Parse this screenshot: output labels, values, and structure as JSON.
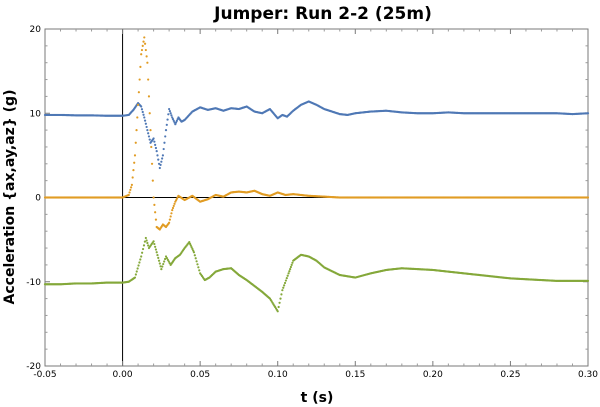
{
  "chart_data": {
    "type": "scatter",
    "title": "Jumper: Run 2-2 (25m)",
    "xlabel": "t (s)",
    "ylabel": "Acceleration {ax,ay,az} (g)",
    "xlim": [
      -0.05,
      0.3
    ],
    "ylim": [
      -20,
      20
    ],
    "x_ticks": [
      -0.05,
      0.0,
      0.05,
      0.1,
      0.15,
      0.2,
      0.25,
      0.3
    ],
    "x_tick_labels": [
      "-0.05",
      "0.00",
      "0.05",
      "0.10",
      "0.15",
      "0.20",
      "0.25",
      "0.30"
    ],
    "y_ticks": [
      -20,
      -10,
      0,
      10,
      20
    ],
    "y_tick_labels": [
      "-20",
      "-10",
      "0",
      "10",
      "20"
    ],
    "grid": false,
    "series": [
      {
        "color": "#4f78b5",
        "points": [
          [
            -0.05,
            9.8
          ],
          [
            -0.04,
            9.8
          ],
          [
            -0.03,
            9.75
          ],
          [
            -0.02,
            9.75
          ],
          [
            -0.01,
            9.7
          ],
          [
            0.0,
            9.7
          ],
          [
            0.004,
            9.8
          ],
          [
            0.007,
            10.4
          ],
          [
            0.01,
            11.2
          ],
          [
            0.012,
            10.8
          ],
          [
            0.014,
            9.5
          ],
          [
            0.016,
            8.0
          ],
          [
            0.018,
            6.5
          ],
          [
            0.02,
            7.0
          ],
          [
            0.022,
            5.5
          ],
          [
            0.024,
            3.5
          ],
          [
            0.026,
            5.0
          ],
          [
            0.028,
            8.0
          ],
          [
            0.03,
            10.5
          ],
          [
            0.032,
            9.5
          ],
          [
            0.034,
            8.7
          ],
          [
            0.036,
            9.5
          ],
          [
            0.038,
            9.0
          ],
          [
            0.04,
            9.2
          ],
          [
            0.045,
            10.2
          ],
          [
            0.05,
            10.7
          ],
          [
            0.055,
            10.4
          ],
          [
            0.06,
            10.6
          ],
          [
            0.065,
            10.3
          ],
          [
            0.07,
            10.6
          ],
          [
            0.075,
            10.5
          ],
          [
            0.08,
            10.8
          ],
          [
            0.085,
            10.2
          ],
          [
            0.09,
            10.0
          ],
          [
            0.095,
            10.5
          ],
          [
            0.1,
            9.4
          ],
          [
            0.103,
            9.8
          ],
          [
            0.106,
            9.6
          ],
          [
            0.11,
            10.3
          ],
          [
            0.115,
            11.0
          ],
          [
            0.12,
            11.4
          ],
          [
            0.125,
            11.0
          ],
          [
            0.13,
            10.5
          ],
          [
            0.135,
            10.2
          ],
          [
            0.14,
            9.9
          ],
          [
            0.145,
            9.8
          ],
          [
            0.15,
            10.0
          ],
          [
            0.16,
            10.2
          ],
          [
            0.17,
            10.3
          ],
          [
            0.18,
            10.1
          ],
          [
            0.19,
            10.0
          ],
          [
            0.2,
            10.0
          ],
          [
            0.21,
            10.1
          ],
          [
            0.22,
            10.0
          ],
          [
            0.23,
            10.0
          ],
          [
            0.24,
            10.0
          ],
          [
            0.25,
            10.0
          ],
          [
            0.26,
            10.0
          ],
          [
            0.27,
            10.0
          ],
          [
            0.28,
            10.0
          ],
          [
            0.29,
            9.9
          ],
          [
            0.3,
            10.0
          ]
        ]
      },
      {
        "color": "#e19c24",
        "points": [
          [
            -0.05,
            0.0
          ],
          [
            -0.01,
            0.0
          ],
          [
            0.0,
            0.0
          ],
          [
            0.004,
            0.3
          ],
          [
            0.006,
            1.5
          ],
          [
            0.008,
            5.0
          ],
          [
            0.01,
            11.0
          ],
          [
            0.012,
            17.0
          ],
          [
            0.014,
            19.0
          ],
          [
            0.016,
            16.0
          ],
          [
            0.018,
            8.0
          ],
          [
            0.02,
            0.0
          ],
          [
            0.022,
            -3.5
          ],
          [
            0.024,
            -3.8
          ],
          [
            0.026,
            -3.2
          ],
          [
            0.028,
            -3.5
          ],
          [
            0.03,
            -3.0
          ],
          [
            0.032,
            -1.5
          ],
          [
            0.034,
            -0.5
          ],
          [
            0.036,
            0.2
          ],
          [
            0.04,
            -0.3
          ],
          [
            0.045,
            0.2
          ],
          [
            0.05,
            -0.5
          ],
          [
            0.055,
            -0.2
          ],
          [
            0.06,
            0.3
          ],
          [
            0.065,
            0.1
          ],
          [
            0.07,
            0.6
          ],
          [
            0.075,
            0.7
          ],
          [
            0.08,
            0.6
          ],
          [
            0.085,
            0.8
          ],
          [
            0.09,
            0.4
          ],
          [
            0.095,
            0.2
          ],
          [
            0.1,
            0.6
          ],
          [
            0.105,
            0.3
          ],
          [
            0.11,
            0.4
          ],
          [
            0.12,
            0.2
          ],
          [
            0.13,
            0.1
          ],
          [
            0.14,
            0.0
          ],
          [
            0.15,
            0.0
          ],
          [
            0.2,
            0.0
          ],
          [
            0.25,
            0.0
          ],
          [
            0.3,
            0.0
          ]
        ]
      },
      {
        "color": "#84a83a",
        "points": [
          [
            -0.05,
            -10.3
          ],
          [
            -0.04,
            -10.3
          ],
          [
            -0.03,
            -10.2
          ],
          [
            -0.02,
            -10.2
          ],
          [
            -0.01,
            -10.1
          ],
          [
            0.0,
            -10.1
          ],
          [
            0.004,
            -10.0
          ],
          [
            0.008,
            -9.5
          ],
          [
            0.012,
            -7.0
          ],
          [
            0.015,
            -4.8
          ],
          [
            0.017,
            -6.0
          ],
          [
            0.02,
            -5.2
          ],
          [
            0.022,
            -6.5
          ],
          [
            0.025,
            -8.5
          ],
          [
            0.028,
            -7.0
          ],
          [
            0.031,
            -8.0
          ],
          [
            0.034,
            -7.2
          ],
          [
            0.037,
            -6.8
          ],
          [
            0.04,
            -6.0
          ],
          [
            0.043,
            -5.3
          ],
          [
            0.046,
            -6.5
          ],
          [
            0.05,
            -9.0
          ],
          [
            0.053,
            -9.8
          ],
          [
            0.056,
            -9.5
          ],
          [
            0.06,
            -8.8
          ],
          [
            0.065,
            -8.5
          ],
          [
            0.07,
            -8.4
          ],
          [
            0.075,
            -9.2
          ],
          [
            0.08,
            -9.8
          ],
          [
            0.085,
            -10.5
          ],
          [
            0.09,
            -11.2
          ],
          [
            0.095,
            -12.0
          ],
          [
            0.1,
            -13.5
          ],
          [
            0.103,
            -11.0
          ],
          [
            0.107,
            -9.0
          ],
          [
            0.11,
            -7.5
          ],
          [
            0.115,
            -6.8
          ],
          [
            0.12,
            -7.0
          ],
          [
            0.125,
            -7.5
          ],
          [
            0.13,
            -8.3
          ],
          [
            0.14,
            -9.2
          ],
          [
            0.15,
            -9.5
          ],
          [
            0.16,
            -9.0
          ],
          [
            0.17,
            -8.6
          ],
          [
            0.18,
            -8.4
          ],
          [
            0.19,
            -8.5
          ],
          [
            0.2,
            -8.6
          ],
          [
            0.21,
            -8.8
          ],
          [
            0.22,
            -9.0
          ],
          [
            0.23,
            -9.2
          ],
          [
            0.24,
            -9.4
          ],
          [
            0.25,
            -9.6
          ],
          [
            0.26,
            -9.7
          ],
          [
            0.27,
            -9.8
          ],
          [
            0.28,
            -9.9
          ],
          [
            0.29,
            -9.9
          ],
          [
            0.3,
            -9.9
          ]
        ]
      }
    ]
  }
}
